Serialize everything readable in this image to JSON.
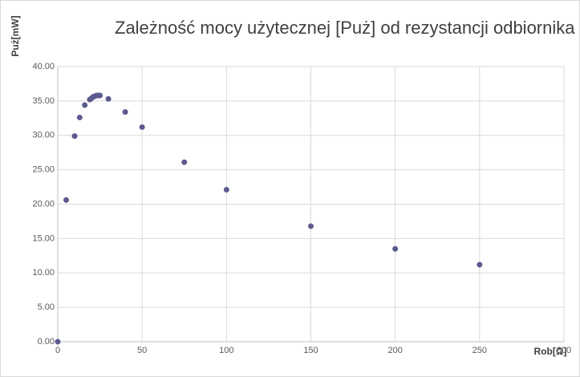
{
  "chart_data": {
    "type": "scatter",
    "title": "Zależność mocy użytecznej [Puż] od rezystancji odbiornika R",
    "x_label": "Rob[Ω]",
    "y_label": "Puż[mW]",
    "x": [
      0,
      5,
      10,
      13,
      16,
      19,
      20,
      21,
      22,
      23,
      24,
      25,
      30,
      40,
      50,
      75,
      100,
      150,
      200,
      250
    ],
    "values": [
      0,
      20.6,
      29.9,
      32.6,
      34.4,
      35.2,
      35.4,
      35.6,
      35.7,
      35.8,
      35.8,
      35.8,
      35.3,
      33.4,
      31.2,
      26.1,
      22.1,
      16.8,
      13.5,
      11.2
    ],
    "color": "#5b5b8f",
    "xlim": [
      0,
      300
    ],
    "xticks": [
      0,
      50,
      100,
      150,
      200,
      250,
      300
    ],
    "ylim": [
      0,
      40
    ],
    "yticks": [
      {
        "value": 0,
        "label": "0.00"
      },
      {
        "value": 5,
        "label": "5.00"
      },
      {
        "value": 10,
        "label": "10.00"
      },
      {
        "value": 15,
        "label": "15.00"
      },
      {
        "value": 20,
        "label": "20.00"
      },
      {
        "value": 25,
        "label": "25.00"
      },
      {
        "value": 30,
        "label": "30.00"
      },
      {
        "value": 35,
        "label": "35.00"
      },
      {
        "value": 40,
        "label": "40.00"
      }
    ],
    "grid": true
  }
}
